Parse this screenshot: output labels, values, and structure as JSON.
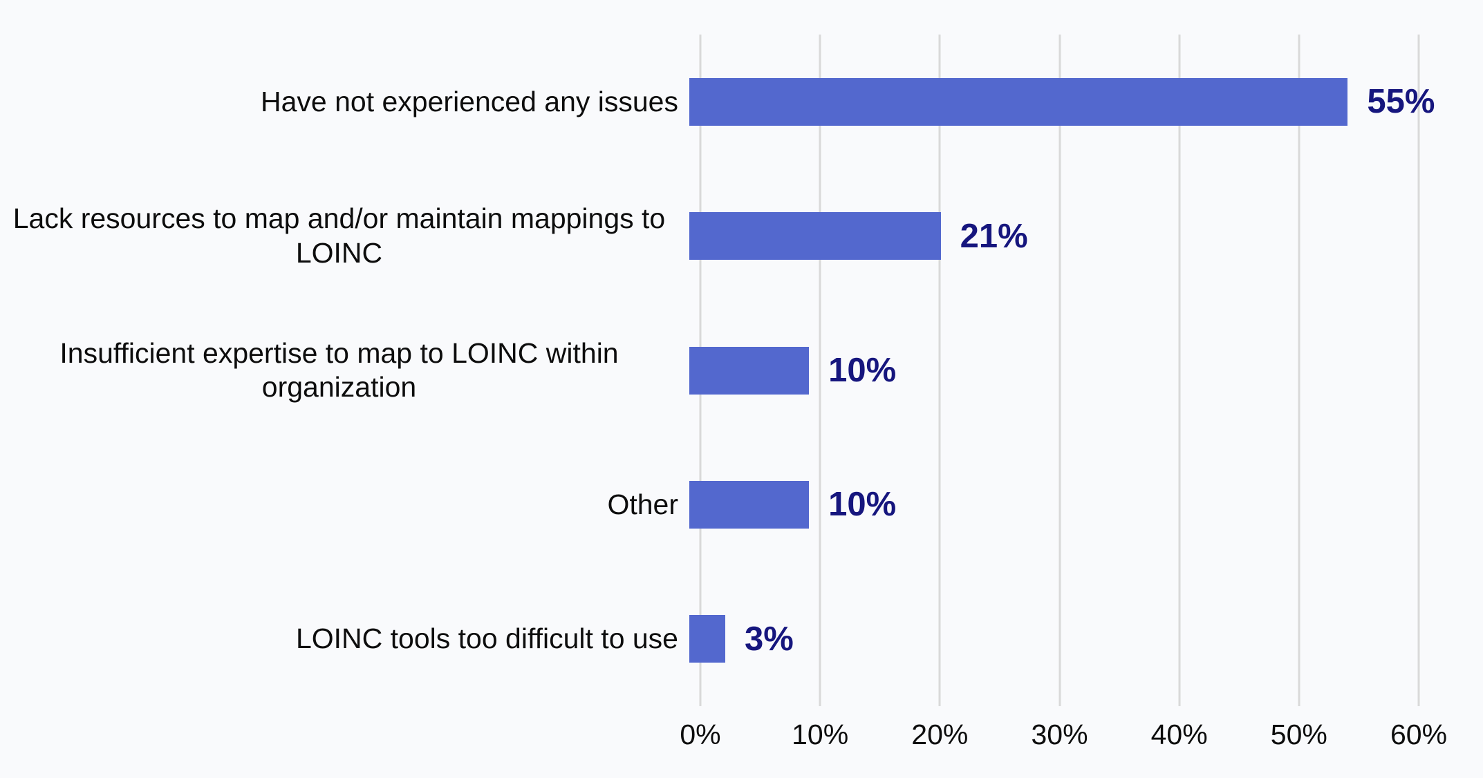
{
  "chart_data": {
    "type": "bar",
    "orientation": "horizontal",
    "title": "",
    "xlabel": "",
    "ylabel": "",
    "categories": [
      "Have not experienced any issues",
      "Lack resources to map and/or maintain mappings to LOINC",
      "Insufficient expertise to map to LOINC within organization",
      "Other",
      "LOINC tools too difficult to use"
    ],
    "values": [
      55,
      21,
      10,
      10,
      3
    ],
    "value_labels": [
      "55%",
      "21%",
      "10%",
      "10%",
      "3%"
    ],
    "xlim": [
      0,
      60
    ],
    "x_ticks": [
      "0%",
      "10%",
      "20%",
      "30%",
      "40%",
      "50%",
      "60%"
    ],
    "x_tick_values": [
      0,
      10,
      20,
      30,
      40,
      50,
      60
    ],
    "grid": "vertical-only",
    "legend_position": "none",
    "colors": {
      "bar": "#5368ce",
      "value_label": "#16167e",
      "axis_text": "#0d0d0d",
      "gridline": "#d9d9d9",
      "background": "#f9fafc"
    }
  }
}
